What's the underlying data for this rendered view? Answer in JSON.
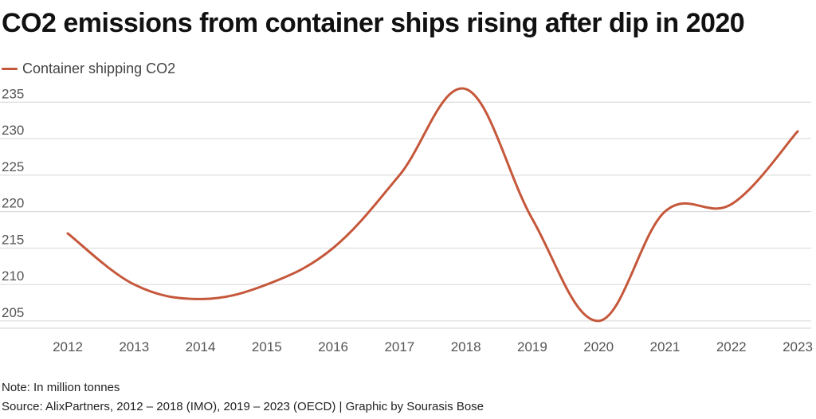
{
  "title": "CO2 emissions from container ships rising after dip in 2020",
  "note": "Note: In million tonnes",
  "source": "Source: AlixPartners, 2012 – 2018 (IMO), 2019 – 2023 (OECD) | Graphic by Sourasis Bose",
  "colors": {
    "series": "#c5573a",
    "grid": "#d6d6d6",
    "axis_text": "#555555"
  },
  "chart_data": {
    "type": "line",
    "title": "CO2 emissions from container ships rising after dip in 2020",
    "x": [
      "2012",
      "2013",
      "2014",
      "2015",
      "2016",
      "2017",
      "2018",
      "2019",
      "2020",
      "2021",
      "2022",
      "2023"
    ],
    "series": [
      {
        "name": "Container shipping CO2",
        "values": [
          217,
          210,
          208,
          210,
          215,
          225,
          236.8,
          219,
          205,
          220,
          221,
          231
        ]
      }
    ],
    "y_ticks": [
      205,
      210,
      215,
      220,
      225,
      230,
      235
    ],
    "ylim": [
      204,
      237
    ],
    "grid": true,
    "legend": "top-left",
    "xlabel": "",
    "ylabel": ""
  }
}
